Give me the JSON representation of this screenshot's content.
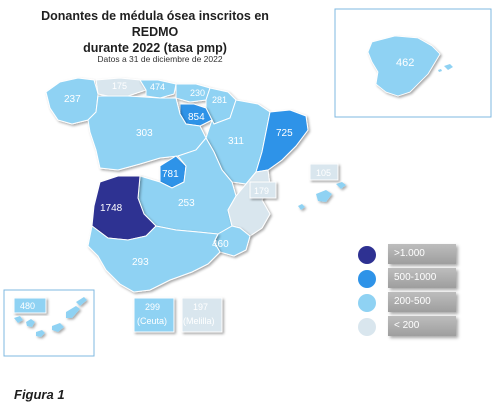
{
  "title_line1": "Donantes de médula ósea inscritos en REDMO",
  "title_line2": "durante 2022 (tasa pmp)",
  "subtitle": "Datos a 31 de diciembre de 2022",
  "figure_caption": "Figura 1",
  "colors": {
    "very_high": "#2e3192",
    "high": "#2e93e8",
    "medium": "#8fd2f3",
    "low": "#d9e6ee"
  },
  "regions": {
    "galicia": "237",
    "asturias": "175",
    "cantabria": "474",
    "pais_vasco": "230",
    "navarra": "281",
    "la_rioja": "854",
    "castilla_leon": "303",
    "aragon": "311",
    "cataluna": "725",
    "madrid": "781",
    "castilla_la_mancha": "253",
    "valencia": "179",
    "baleares": "105",
    "extremadura": "1748",
    "murcia": "460",
    "andalucia": "293",
    "canarias": "480",
    "ceuta_value": "299",
    "ceuta_name": "(Ceuta)",
    "melilla_value": "197",
    "melilla_name": "(Melilla)",
    "espana_total": "462"
  },
  "legend": [
    {
      "label": ">1.000",
      "color": "#2e3192"
    },
    {
      "label": "500-1000",
      "color": "#2e93e8"
    },
    {
      "label": "200-500",
      "color": "#8fd2f3"
    },
    {
      "label": "< 200",
      "color": "#d9e6ee"
    }
  ]
}
